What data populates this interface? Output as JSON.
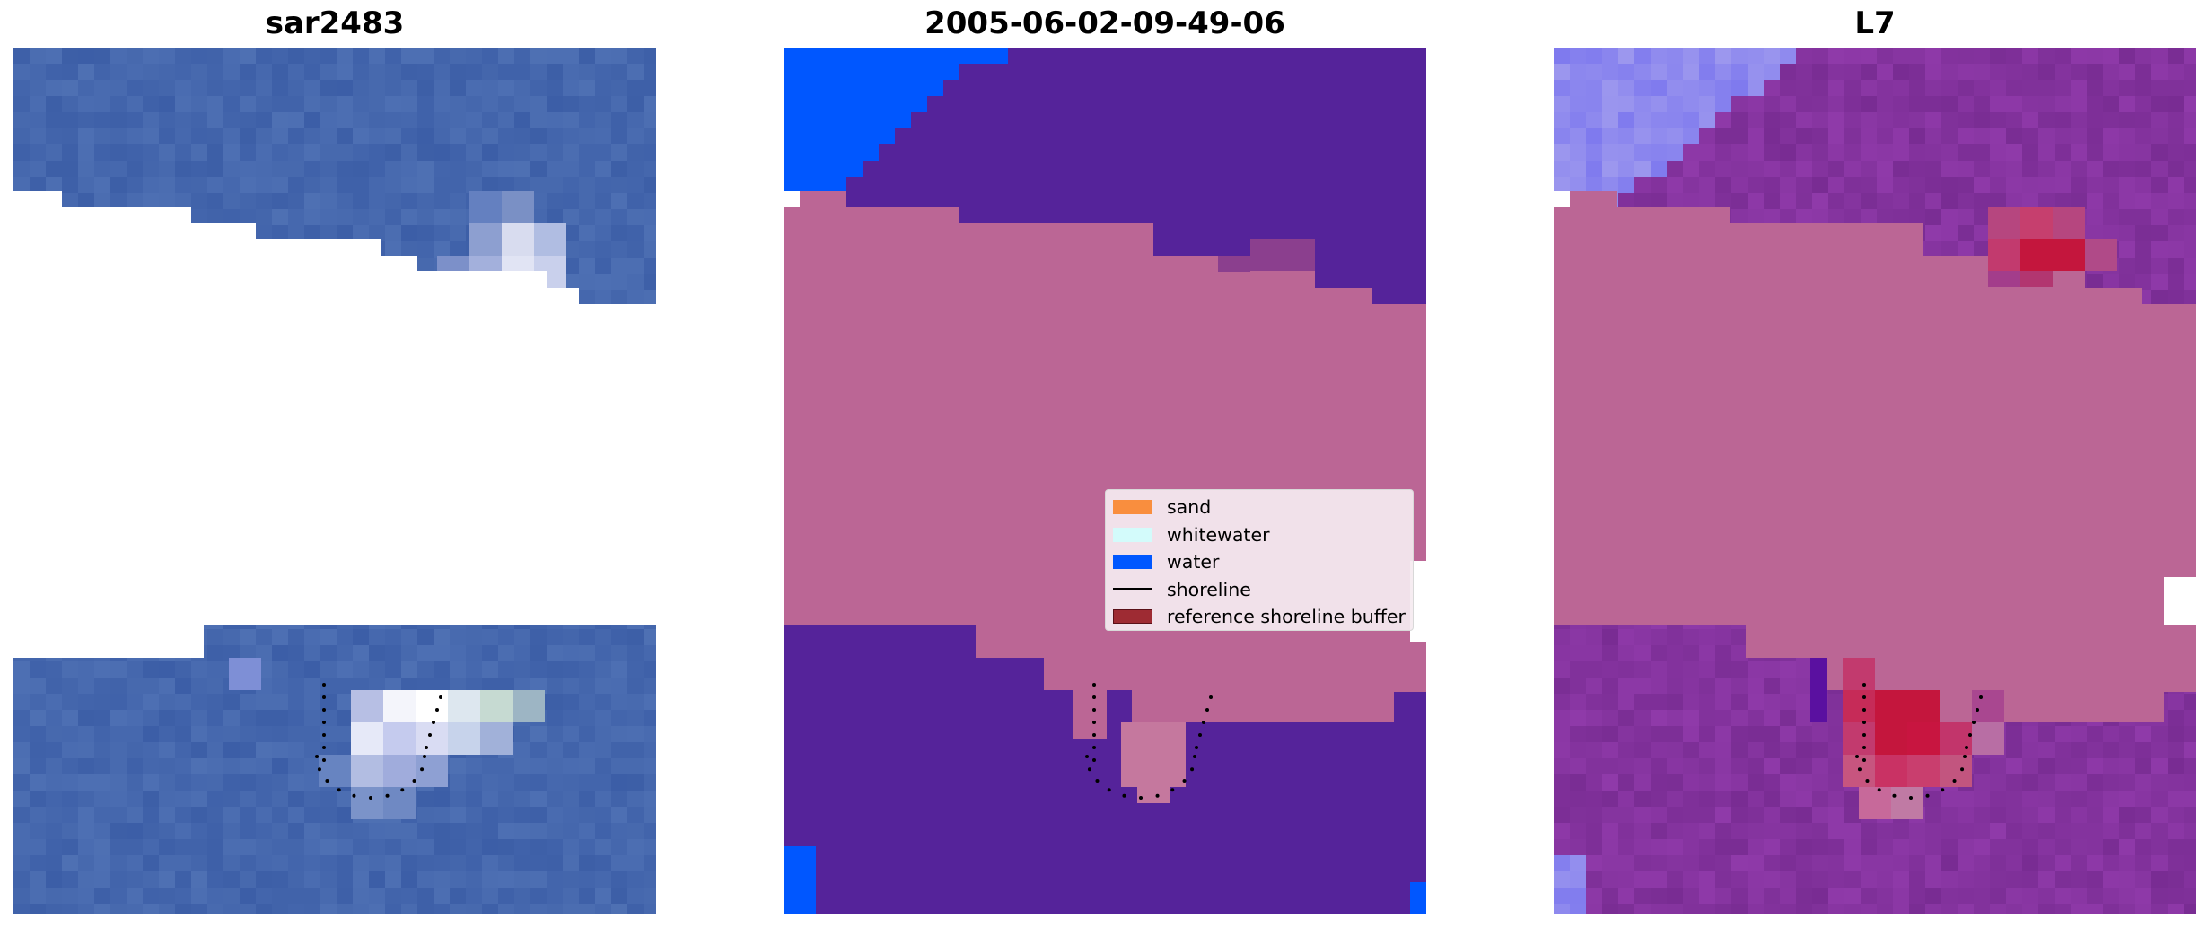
{
  "panels": [
    {
      "title": "sar2483"
    },
    {
      "title": "2005-06-02-09-49-06"
    },
    {
      "title": "L7"
    }
  ],
  "legend": {
    "items": [
      {
        "label": "sand",
        "color": "#f98e3e",
        "kind": "patch"
      },
      {
        "label": "whitewater",
        "color": "#d3fbfb",
        "kind": "patch"
      },
      {
        "label": "water",
        "color": "#0057ff",
        "kind": "patch"
      },
      {
        "label": "shoreline",
        "color": "#000000",
        "kind": "line"
      },
      {
        "label": "reference shoreline buffer",
        "color": "#9e2b33",
        "kind": "patch",
        "edge": "#5a1018"
      }
    ]
  },
  "colors": {
    "sea_blue": "#4567ad",
    "classified_water": "#55239a",
    "buffer_pink": "#bb6695",
    "bright_water": "#0057ff",
    "probability_purple": "#84339e",
    "probability_red": "#c4163d",
    "probability_light": "#8e89ee"
  }
}
